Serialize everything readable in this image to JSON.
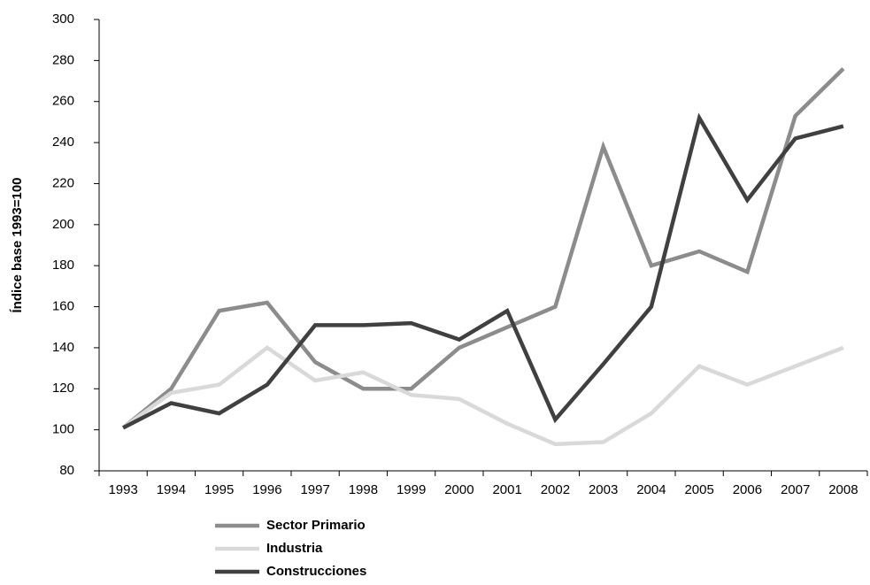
{
  "chart_data": {
    "type": "line",
    "ylabel": "Índice base 1993=100",
    "categories": [
      "1993",
      "1994",
      "1995",
      "1996",
      "1997",
      "1998",
      "1999",
      "2000",
      "2001",
      "2002",
      "2003",
      "2004",
      "2005",
      "2006",
      "2007",
      "2008"
    ],
    "series": [
      {
        "name": "Sector Primario",
        "color": "#8c8c8c",
        "values": [
          101,
          120,
          158,
          162,
          133,
          120,
          120,
          140,
          150,
          160,
          238,
          180,
          187,
          177,
          253,
          276
        ]
      },
      {
        "name": "Industria",
        "color": "#d9d9d9",
        "values": [
          101,
          118,
          122,
          140,
          124,
          128,
          117,
          115,
          103,
          93,
          94,
          108,
          131,
          122,
          131,
          140
        ]
      },
      {
        "name": "Construcciones",
        "color": "#404040",
        "values": [
          101,
          113,
          108,
          122,
          151,
          151,
          152,
          144,
          158,
          105,
          132,
          160,
          252,
          212,
          242,
          248
        ]
      }
    ],
    "ylim": [
      80,
      300
    ],
    "yticks": [
      80,
      100,
      120,
      140,
      160,
      180,
      200,
      220,
      240,
      260,
      280,
      300
    ],
    "grid": false
  }
}
